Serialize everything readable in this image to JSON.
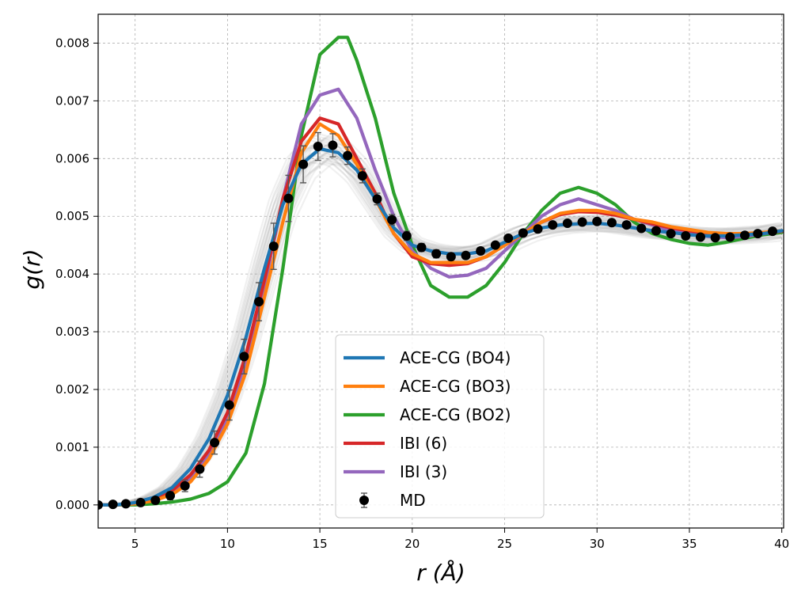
{
  "chart_data": {
    "type": "line",
    "xlabel": "r (Å)",
    "ylabel": "g(r)",
    "xlim": [
      3,
      40.1
    ],
    "ylim": [
      -0.0004,
      0.0085
    ],
    "xticks": [
      5,
      10,
      15,
      20,
      25,
      30,
      35,
      40
    ],
    "xtick_labels": [
      "5",
      "10",
      "15",
      "20",
      "25",
      "30",
      "35",
      "40"
    ],
    "yticks": [
      0.0,
      0.001,
      0.002,
      0.003,
      0.004,
      0.005,
      0.006,
      0.007,
      0.008
    ],
    "ytick_labels": [
      "0.000",
      "0.001",
      "0.002",
      "0.003",
      "0.004",
      "0.005",
      "0.006",
      "0.007",
      "0.008"
    ],
    "grid": true,
    "legend_position": "lower-center",
    "series": [
      {
        "name": "ACE-CG (BO4)",
        "color": "#1f77b4",
        "x": [
          3,
          4,
          5,
          6,
          7,
          8,
          9,
          10,
          11,
          12,
          13,
          14,
          15,
          16,
          17,
          18,
          19,
          20,
          21,
          22,
          23,
          24,
          25,
          26,
          27,
          28,
          29,
          30,
          31,
          32,
          33,
          34,
          35,
          36,
          37,
          38,
          39,
          40
        ],
        "y": [
          0.0,
          0.0,
          4e-05,
          0.00013,
          0.0003,
          0.00063,
          0.00115,
          0.0019,
          0.0029,
          0.0041,
          0.0052,
          0.0059,
          0.00617,
          0.0061,
          0.0058,
          0.0053,
          0.0048,
          0.0045,
          0.0044,
          0.00435,
          0.00435,
          0.0044,
          0.00455,
          0.0047,
          0.0048,
          0.00485,
          0.00487,
          0.00488,
          0.00485,
          0.0048,
          0.00475,
          0.00472,
          0.00468,
          0.00466,
          0.00466,
          0.00468,
          0.0047,
          0.00475
        ]
      },
      {
        "name": "ACE-CG (BO3)",
        "color": "#ff7f0e",
        "x": [
          3,
          4,
          5,
          6,
          7,
          8,
          9,
          10,
          11,
          12,
          13,
          14,
          15,
          16,
          17,
          18,
          19,
          20,
          21,
          22,
          23,
          24,
          25,
          26,
          27,
          28,
          29,
          30,
          31,
          32,
          33,
          34,
          35,
          36,
          37,
          38,
          39,
          40
        ],
        "y": [
          0.0,
          0.0,
          2e-05,
          7e-05,
          0.00018,
          0.0004,
          0.0008,
          0.0014,
          0.0023,
          0.0036,
          0.0049,
          0.0061,
          0.0066,
          0.0064,
          0.0059,
          0.0053,
          0.0047,
          0.00435,
          0.0042,
          0.0042,
          0.0042,
          0.0043,
          0.0045,
          0.0047,
          0.0049,
          0.00505,
          0.0051,
          0.0051,
          0.00505,
          0.00495,
          0.0049,
          0.00482,
          0.00477,
          0.00472,
          0.0047,
          0.0047,
          0.00472,
          0.00475
        ]
      },
      {
        "name": "ACE-CG (BO2)",
        "color": "#2ca02c",
        "x": [
          3,
          4,
          5,
          6,
          7,
          8,
          9,
          10,
          11,
          12,
          13,
          14,
          15,
          16,
          16.5,
          17,
          18,
          19,
          20,
          21,
          22,
          23,
          24,
          25,
          26,
          27,
          28,
          29,
          30,
          31,
          32,
          33,
          34,
          35,
          36,
          37,
          38,
          39,
          40
        ],
        "y": [
          0.0,
          0.0,
          0.0,
          2e-05,
          5e-05,
          0.0001,
          0.0002,
          0.0004,
          0.0009,
          0.0021,
          0.0041,
          0.0064,
          0.0078,
          0.0081,
          0.0081,
          0.0077,
          0.0067,
          0.0054,
          0.0045,
          0.0038,
          0.0036,
          0.0036,
          0.0038,
          0.0042,
          0.0047,
          0.0051,
          0.0054,
          0.0055,
          0.0054,
          0.0052,
          0.0049,
          0.0047,
          0.0046,
          0.00453,
          0.0045,
          0.00455,
          0.00462,
          0.00468,
          0.00472
        ]
      },
      {
        "name": "IBI (6)",
        "color": "#d62728",
        "x": [
          3,
          4,
          5,
          6,
          7,
          8,
          9,
          10,
          11,
          12,
          13,
          14,
          15,
          16,
          17,
          18,
          19,
          20,
          21,
          22,
          23,
          24,
          25,
          26,
          27,
          28,
          29,
          30,
          31,
          32,
          33,
          34,
          35,
          36,
          37,
          38,
          39,
          40
        ],
        "y": [
          0.0,
          0.0,
          3e-05,
          0.0001,
          0.00025,
          0.00052,
          0.00095,
          0.0016,
          0.0026,
          0.0039,
          0.0053,
          0.0063,
          0.0067,
          0.0066,
          0.006,
          0.0054,
          0.0047,
          0.0043,
          0.00418,
          0.00415,
          0.00418,
          0.0043,
          0.0045,
          0.0047,
          0.0049,
          0.00503,
          0.00508,
          0.00507,
          0.00502,
          0.00495,
          0.00487,
          0.0048,
          0.00475,
          0.0047,
          0.00468,
          0.00468,
          0.0047,
          0.00474
        ]
      },
      {
        "name": "IBI (3)",
        "color": "#9467bd",
        "x": [
          3,
          4,
          5,
          6,
          7,
          8,
          9,
          10,
          11,
          12,
          13,
          14,
          15,
          16,
          17,
          18,
          19,
          20,
          21,
          22,
          23,
          24,
          25,
          26,
          27,
          28,
          29,
          30,
          31,
          32,
          33,
          34,
          35,
          36,
          37,
          38,
          39,
          40
        ],
        "y": [
          0.0,
          0.0,
          2e-05,
          8e-05,
          0.0002,
          0.00045,
          0.0009,
          0.0015,
          0.0025,
          0.0038,
          0.0053,
          0.0066,
          0.0071,
          0.0072,
          0.0067,
          0.0058,
          0.005,
          0.0044,
          0.0041,
          0.00395,
          0.00398,
          0.0041,
          0.0044,
          0.0047,
          0.005,
          0.0052,
          0.0053,
          0.0052,
          0.0051,
          0.00495,
          0.00485,
          0.00475,
          0.0047,
          0.00465,
          0.00463,
          0.00465,
          0.0047,
          0.00475
        ]
      },
      {
        "name": "MD",
        "color": "#000000",
        "marker": "circle",
        "x": [
          3.0,
          3.8,
          4.5,
          5.3,
          6.1,
          6.9,
          7.7,
          8.5,
          9.3,
          10.1,
          10.9,
          11.7,
          12.5,
          13.3,
          14.1,
          14.9,
          15.7,
          16.5,
          17.3,
          18.1,
          18.9,
          19.7,
          20.5,
          21.3,
          22.1,
          22.9,
          23.7,
          24.5,
          25.2,
          26.0,
          26.8,
          27.6,
          28.4,
          29.2,
          30.0,
          30.8,
          31.6,
          32.4,
          33.2,
          34.0,
          34.8,
          35.6,
          36.4,
          37.2,
          38.0,
          38.7,
          39.5
        ],
        "y": [
          0.0,
          1e-05,
          2e-05,
          4e-05,
          8e-05,
          0.00016,
          0.00033,
          0.00062,
          0.00108,
          0.00173,
          0.00257,
          0.00352,
          0.00448,
          0.00531,
          0.0059,
          0.00621,
          0.00623,
          0.00605,
          0.0057,
          0.0053,
          0.00494,
          0.00466,
          0.00446,
          0.00435,
          0.0043,
          0.00432,
          0.0044,
          0.0045,
          0.00462,
          0.00471,
          0.00478,
          0.00485,
          0.00488,
          0.0049,
          0.00491,
          0.00489,
          0.00485,
          0.00479,
          0.00475,
          0.0047,
          0.00466,
          0.00464,
          0.00463,
          0.00464,
          0.00467,
          0.0047,
          0.00474
        ],
        "yerr": [
          0.0,
          0.0,
          0.0,
          2e-05,
          4e-05,
          7e-05,
          0.0001,
          0.00014,
          0.0002,
          0.00026,
          0.0003,
          0.00033,
          0.0004,
          0.0004,
          0.00032,
          0.00024,
          0.0002,
          0.00015,
          0.00012,
          0.0001,
          9e-05,
          8e-05,
          7e-05,
          7e-05,
          6e-05,
          6e-05,
          6e-05,
          5e-05,
          5e-05,
          5e-05,
          5e-05,
          5e-05,
          4e-05,
          4e-05,
          4e-05,
          4e-05,
          4e-05,
          4e-05,
          4e-05,
          4e-05,
          4e-05,
          4e-05,
          4e-05,
          4e-05,
          4e-05,
          4e-05,
          4e-05
        ]
      }
    ],
    "ensemble_band": {
      "description": "grey ensemble curves",
      "color": "#808080",
      "count": 30,
      "spread": 0.0007
    }
  }
}
